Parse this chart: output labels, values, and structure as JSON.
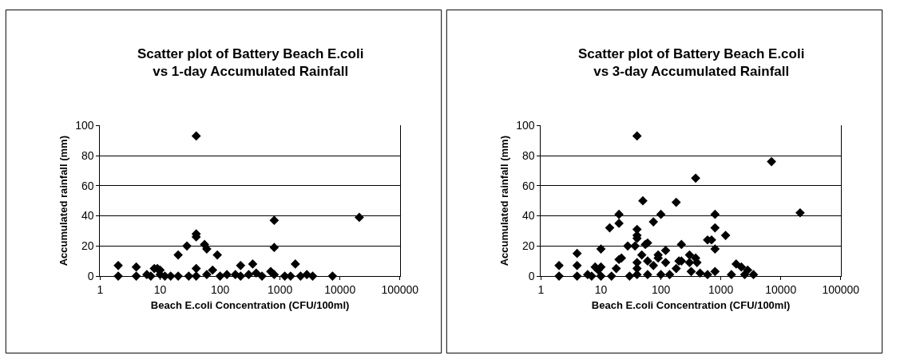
{
  "chart_data": [
    {
      "type": "scatter",
      "title": "Scatter plot of Battery Beach E.coli\nvs 1-day Accumulated Rainfall",
      "xlabel": "Beach E.coli Concentration (CFU/100ml)",
      "ylabel": "Accumulated rainfall (mm)",
      "color": "#000000",
      "marker": "diamond",
      "log": "x",
      "grid": "y",
      "xlim": [
        1,
        100000
      ],
      "xticks": [
        1,
        10,
        100,
        1000,
        10000,
        100000
      ],
      "ylim": [
        0,
        100
      ],
      "yticks": [
        0,
        20,
        40,
        60,
        80,
        100
      ],
      "x": [
        2,
        2,
        4,
        4,
        6,
        7,
        8,
        9,
        10,
        10,
        12,
        15,
        20,
        20,
        28,
        30,
        40,
        40,
        40,
        40,
        40,
        55,
        60,
        60,
        75,
        90,
        100,
        130,
        180,
        220,
        220,
        300,
        350,
        400,
        500,
        700,
        800,
        800,
        800,
        1200,
        1500,
        1800,
        2200,
        2800,
        3500,
        7500,
        21000
      ],
      "values": [
        7,
        0,
        6,
        0,
        1,
        0,
        5,
        5,
        4,
        1,
        0,
        0,
        14,
        0,
        20,
        0,
        93,
        28,
        26,
        5,
        0,
        21,
        18,
        1,
        4,
        14,
        0,
        1,
        1,
        7,
        0,
        1,
        8,
        2,
        0,
        3,
        37,
        19,
        1,
        0,
        0,
        8,
        0,
        1,
        0,
        0,
        39
      ]
    },
    {
      "type": "scatter",
      "title": "Scatter plot of Battery Beach E.coli\nvs 3-day Accumulated Rainfall",
      "xlabel": "Beach E.coli Concentration (CFU/100ml)",
      "ylabel": "Accumulated rainfall (mm)",
      "color": "#000000",
      "marker": "diamond",
      "log": "x",
      "grid": "y",
      "xlim": [
        1,
        100000
      ],
      "xticks": [
        1,
        10,
        100,
        1000,
        10000,
        100000
      ],
      "ylim": [
        0,
        100
      ],
      "yticks": [
        0,
        20,
        40,
        60,
        80,
        100
      ],
      "x": [
        2,
        2,
        4,
        4,
        4,
        6,
        7,
        8,
        9,
        10,
        10,
        10,
        14,
        15,
        18,
        20,
        20,
        20,
        22,
        28,
        30,
        37,
        40,
        40,
        40,
        40,
        40,
        40,
        40,
        48,
        50,
        55,
        60,
        60,
        60,
        75,
        75,
        90,
        90,
        100,
        100,
        120,
        120,
        140,
        180,
        180,
        200,
        220,
        220,
        300,
        300,
        320,
        380,
        380,
        400,
        450,
        600,
        600,
        700,
        800,
        800,
        800,
        800,
        1200,
        1500,
        1800,
        2200,
        2500,
        2800,
        3500,
        7000,
        21000
      ],
      "values": [
        7,
        0,
        15,
        7,
        0,
        1,
        0,
        6,
        4,
        18,
        6,
        0,
        32,
        0,
        5,
        41,
        35,
        11,
        12,
        20,
        0,
        20,
        93,
        31,
        27,
        25,
        9,
        5,
        1,
        14,
        50,
        21,
        22,
        10,
        1,
        36,
        7,
        14,
        12,
        41,
        1,
        17,
        9,
        1,
        49,
        5,
        10,
        21,
        10,
        14,
        9,
        3,
        65,
        12,
        9,
        2,
        24,
        1,
        24,
        41,
        32,
        18,
        3,
        27,
        1,
        8,
        6,
        1,
        4,
        1,
        76,
        42
      ]
    }
  ]
}
